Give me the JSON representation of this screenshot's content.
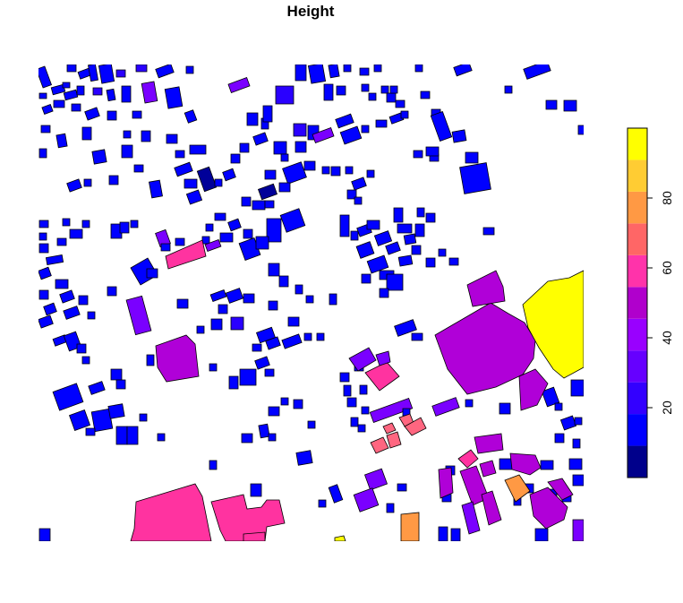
{
  "title": "Height",
  "legend": {
    "tick_labels": [
      "20",
      "40",
      "60",
      "80"
    ],
    "ticks": [
      20,
      40,
      60,
      80
    ],
    "range": [
      0,
      100
    ],
    "colors": [
      "#00008B",
      "#0000FF",
      "#3300FF",
      "#6600FF",
      "#9900FF",
      "#B000CC",
      "#FF33AA",
      "#FF6666",
      "#FF9944",
      "#FFCC33",
      "#FFFF00"
    ]
  },
  "palette": {
    "navy": "#000099",
    "blue": "#0000FF",
    "blue2": "#2A00FF",
    "violet": "#7A00FF",
    "purple": "#B000D8",
    "pink": "#FF33A0",
    "salmon": "#FF6680",
    "orange": "#FF9944",
    "yellow": "#FFFF00"
  }
}
